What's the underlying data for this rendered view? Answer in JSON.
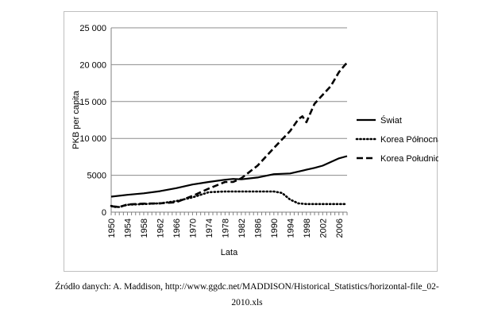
{
  "chart_data": {
    "type": "line",
    "title": "",
    "xlabel": "Lata",
    "ylabel": "PKB per capita",
    "ylim": [
      0,
      25000
    ],
    "yticks": [
      0,
      5000,
      10000,
      15000,
      20000,
      25000
    ],
    "ytick_labels": [
      "0",
      "5000",
      "10 000",
      "15 000",
      "20 000",
      "25 000"
    ],
    "xlim": [
      1950,
      2008
    ],
    "xticks": [
      1950,
      1954,
      1958,
      1962,
      1966,
      1970,
      1974,
      1978,
      1982,
      1986,
      1990,
      1994,
      1998,
      2002,
      2006
    ],
    "xtick_labels": [
      "1950",
      "1954",
      "1958",
      "1962",
      "1966",
      "1970",
      "1974",
      "1978",
      "1982",
      "1986",
      "1990",
      "1994",
      "1998",
      "2002",
      "2006"
    ],
    "grid": "horizontal",
    "legend_position": "right",
    "series": [
      {
        "name": "Świat",
        "style": "solid",
        "color": "#000000",
        "x": [
          1950,
          1954,
          1958,
          1962,
          1966,
          1970,
          1974,
          1978,
          1980,
          1982,
          1986,
          1990,
          1994,
          1998,
          2000,
          2002,
          2006,
          2008
        ],
        "y": [
          2100,
          2350,
          2550,
          2850,
          3250,
          3750,
          4100,
          4400,
          4500,
          4450,
          4700,
          5150,
          5250,
          5750,
          6000,
          6300,
          7300,
          7600
        ]
      },
      {
        "name": "Korea Północna",
        "style": "dotted",
        "color": "#000000",
        "x": [
          1950,
          1951,
          1952,
          1954,
          1958,
          1962,
          1966,
          1970,
          1974,
          1978,
          1982,
          1986,
          1990,
          1992,
          1994,
          1996,
          1998,
          2002,
          2006,
          2008
        ],
        "y": [
          850,
          700,
          700,
          1000,
          1100,
          1200,
          1500,
          2000,
          2700,
          2800,
          2800,
          2800,
          2800,
          2600,
          1700,
          1200,
          1100,
          1100,
          1100,
          1100
        ]
      },
      {
        "name": "Korea Południowa",
        "style": "dashed",
        "color": "#000000",
        "x": [
          1950,
          1952,
          1954,
          1958,
          1962,
          1966,
          1970,
          1974,
          1978,
          1980,
          1982,
          1986,
          1990,
          1994,
          1996,
          1997,
          1998,
          2000,
          2002,
          2004,
          2006,
          2008
        ],
        "y": [
          800,
          700,
          1050,
          1150,
          1200,
          1350,
          2200,
          3200,
          4100,
          4100,
          4600,
          6300,
          8700,
          11000,
          12600,
          13000,
          12200,
          14700,
          15900,
          17100,
          19000,
          20300
        ]
      }
    ]
  },
  "source_note": {
    "line1": "Źródło danych: A. Maddison, http://www.ggdc.net/MADDISON/Historical_Statistics/horizontal-file_02-",
    "line2": "2010.xls"
  }
}
